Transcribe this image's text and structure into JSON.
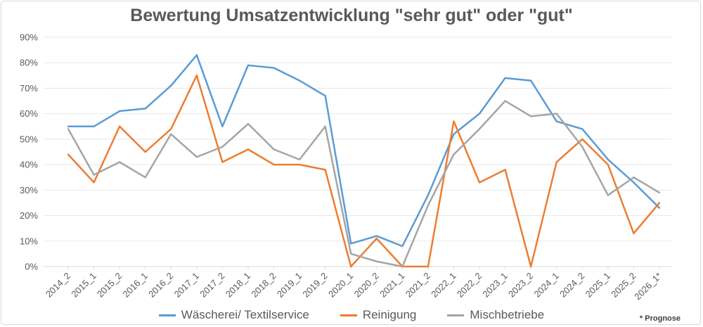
{
  "chart_data": {
    "type": "line",
    "title": "Bewertung Umsatzentwicklung \"sehr gut\" oder \"gut\"",
    "categories": [
      "2014_2",
      "2015_1",
      "2015_2",
      "2016_1",
      "2016_2",
      "2017_1",
      "2017_2",
      "2018_1",
      "2018_2",
      "2019_1",
      "2019_2",
      "2020_1",
      "2020_2",
      "2021_1",
      "2021_2",
      "2022_1",
      "2022_2",
      "2023_1",
      "2023_2",
      "2024_1",
      "2024_2",
      "2025_1",
      "2025_2",
      "2026_1*"
    ],
    "ylim": [
      0,
      90
    ],
    "yticks": [
      "0%",
      "10%",
      "20%",
      "30%",
      "40%",
      "50%",
      "60%",
      "70%",
      "80%",
      "90%"
    ],
    "grid": true,
    "legend_position": "bottom",
    "series": [
      {
        "name": "Wäscherei/ Textilservice",
        "color": "#5b9bd5",
        "values": [
          55,
          55,
          61,
          62,
          71,
          83,
          55,
          79,
          78,
          73,
          67,
          9,
          12,
          8,
          28,
          52,
          60,
          74,
          73,
          57,
          54,
          42,
          33,
          23
        ]
      },
      {
        "name": "Reinigung",
        "color": "#ed7d31",
        "values": [
          44,
          33,
          55,
          45,
          54,
          75,
          41,
          46,
          40,
          40,
          38,
          0,
          11,
          0,
          0,
          57,
          33,
          38,
          0,
          41,
          50,
          40,
          13,
          25
        ]
      },
      {
        "name": "Mischbetriebe",
        "color": "#a5a5a5",
        "values": [
          54,
          36,
          41,
          35,
          52,
          43,
          47,
          56,
          46,
          42,
          55,
          5,
          2,
          0,
          24,
          44,
          54,
          65,
          59,
          60,
          47,
          28,
          35,
          29
        ]
      }
    ],
    "note": "* Prognose"
  }
}
